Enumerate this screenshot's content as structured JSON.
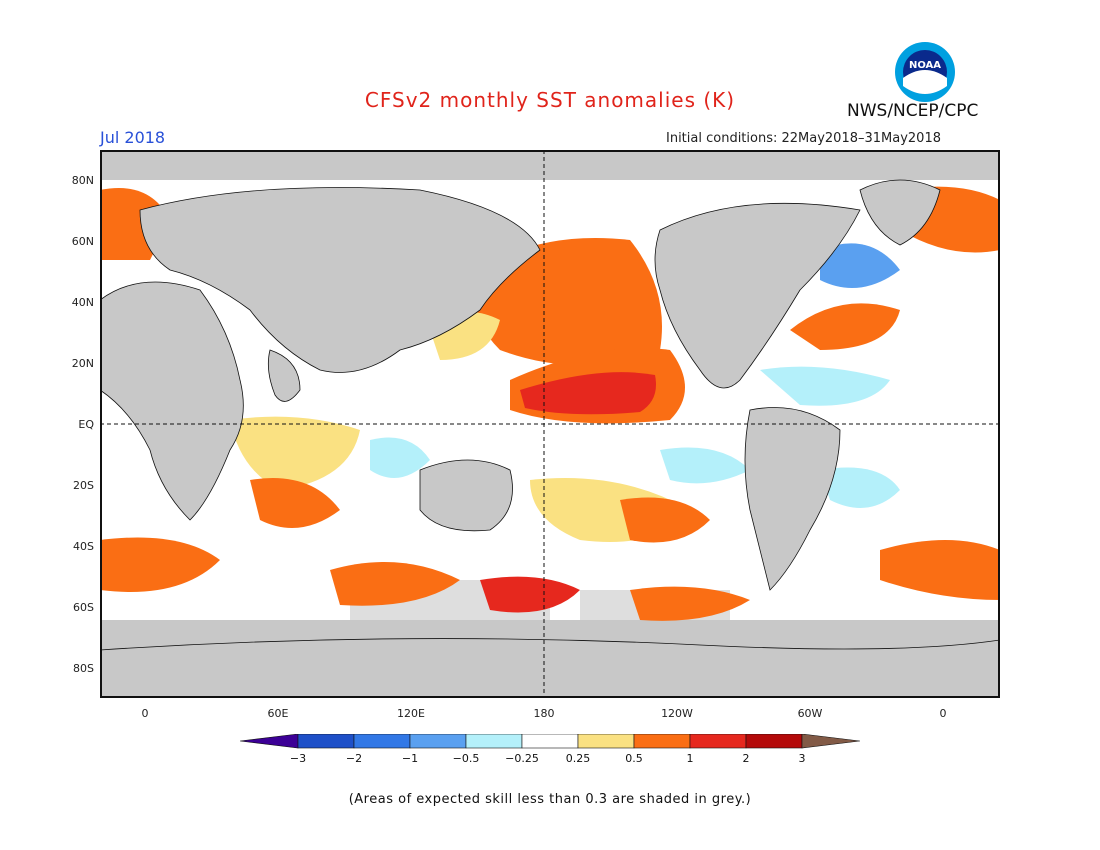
{
  "title": "CFSv2 monthly SST anomalies (K)",
  "month": "Jul 2018",
  "initial_conditions": "Initial conditions: 22May2018–31May2018",
  "agency": "NWS/NCEP/CPC",
  "logo_text": "NOAA",
  "lat_labels": [
    "80N",
    "60N",
    "40N",
    "20N",
    "EQ",
    "20S",
    "40S",
    "60S",
    "80S"
  ],
  "lon_labels": [
    "0",
    "60E",
    "120E",
    "180",
    "120W",
    "60W",
    "0"
  ],
  "colorbar": {
    "labels": [
      "−3",
      "−2",
      "−1",
      "−0.5",
      "−0.25",
      "0.25",
      "0.5",
      "1",
      "2",
      "3"
    ],
    "colors": [
      "#3c0096",
      "#1e50c8",
      "#3278e6",
      "#5aa0f0",
      "#b4f0fa",
      "#ffffff",
      "#fae182",
      "#fa6e14",
      "#e6281e",
      "#b40a0a",
      "#825a46"
    ]
  },
  "footnote": "(Areas of expected skill less than 0.3 are shaded in grey.)",
  "colors": {
    "land": "#c8c8c8",
    "low_skill": "#c8c8c8",
    "title": "#e0241b",
    "month": "#2850d8"
  }
}
